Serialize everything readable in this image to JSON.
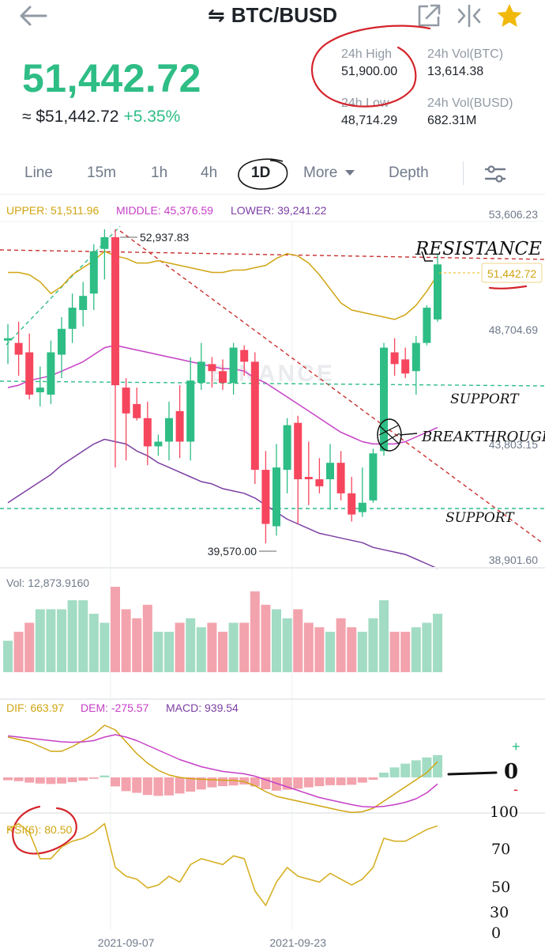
{
  "header": {
    "pair": "BTC/BUSD",
    "swap_icon": "⇋",
    "icons": [
      "back-arrow-icon",
      "share-icon",
      "compare-icon",
      "favorite-star-icon"
    ],
    "favorite_color": "#f0b90b"
  },
  "ticker": {
    "last_price": "51,442.72",
    "fiat_price": "≈ $51,442.72",
    "change": "+5.35%",
    "high_label": "24h High",
    "high_value": "51,900.00",
    "vol_btc_label": "24h Vol(BTC)",
    "vol_btc_value": "13,614.38",
    "low_label": "24h Low",
    "low_value": "48,714.29",
    "vol_busd_label": "24h Vol(BUSD)",
    "vol_busd_value": "682.31M"
  },
  "tabs": [
    {
      "label": "Line"
    },
    {
      "label": "15m"
    },
    {
      "label": "1h"
    },
    {
      "label": "4h"
    },
    {
      "label": "1D",
      "active": true
    },
    {
      "label": "More"
    },
    {
      "label": "Depth"
    }
  ],
  "settings_icon": "settings-sliders-icon",
  "colors": {
    "up": "#2ebd85",
    "down": "#f6465d",
    "upper": "#d0a512",
    "middle": "#c640c6",
    "lower": "#7c3fa3",
    "rsi": "#d7b025"
  },
  "chart_data": {
    "type": "candlestick",
    "boll_legend": {
      "upper": "UPPER: 51,511.96",
      "middle": "MIDDLE: 45,376.59",
      "lower": "LOWER: 39,241.22"
    },
    "price_axis": [
      "53,606.23",
      "48,704.69",
      "43,803.15",
      "38,901.60"
    ],
    "price_axis_values": [
      53606.23,
      48704.69,
      43803.15,
      38901.6
    ],
    "last_price_tag": "51,442.72",
    "high_marker": "52,937.83",
    "low_marker": "39,570.00",
    "watermark": "BINANCE",
    "candles": [
      {
        "o": 48200,
        "h": 48900,
        "l": 47200,
        "c": 48300
      },
      {
        "o": 48100,
        "h": 49000,
        "l": 46700,
        "c": 47600
      },
      {
        "o": 47700,
        "h": 48500,
        "l": 45700,
        "c": 45900
      },
      {
        "o": 46000,
        "h": 47100,
        "l": 45400,
        "c": 46200
      },
      {
        "o": 45900,
        "h": 48200,
        "l": 45500,
        "c": 47700
      },
      {
        "o": 47600,
        "h": 49200,
        "l": 46600,
        "c": 48700
      },
      {
        "o": 48700,
        "h": 50200,
        "l": 48100,
        "c": 49600
      },
      {
        "o": 49500,
        "h": 50700,
        "l": 48800,
        "c": 50100
      },
      {
        "o": 50200,
        "h": 52300,
        "l": 49500,
        "c": 52000
      },
      {
        "o": 52100,
        "h": 52937.83,
        "l": 50800,
        "c": 52600
      },
      {
        "o": 52600,
        "h": 52937.83,
        "l": 42800,
        "c": 46300
      },
      {
        "o": 46200,
        "h": 46600,
        "l": 43100,
        "c": 45100
      },
      {
        "o": 45500,
        "h": 46200,
        "l": 44800,
        "c": 44900
      },
      {
        "o": 44900,
        "h": 45600,
        "l": 42900,
        "c": 43700
      },
      {
        "o": 43700,
        "h": 44200,
        "l": 43300,
        "c": 43900
      },
      {
        "o": 43900,
        "h": 45600,
        "l": 43100,
        "c": 44900
      },
      {
        "o": 45200,
        "h": 46300,
        "l": 43200,
        "c": 43900
      },
      {
        "o": 43900,
        "h": 47500,
        "l": 43100,
        "c": 46500
      },
      {
        "o": 46400,
        "h": 48100,
        "l": 46100,
        "c": 47300
      },
      {
        "o": 47200,
        "h": 47500,
        "l": 46200,
        "c": 46900
      },
      {
        "o": 46900,
        "h": 47400,
        "l": 46100,
        "c": 46400
      },
      {
        "o": 46400,
        "h": 48100,
        "l": 45900,
        "c": 47900
      },
      {
        "o": 47800,
        "h": 48000,
        "l": 46700,
        "c": 47300
      },
      {
        "o": 47300,
        "h": 47700,
        "l": 42100,
        "c": 42700
      },
      {
        "o": 42700,
        "h": 43500,
        "l": 39570.0,
        "c": 40400
      },
      {
        "o": 40300,
        "h": 43800,
        "l": 39900,
        "c": 42800
      },
      {
        "o": 42700,
        "h": 44900,
        "l": 41700,
        "c": 44600
      },
      {
        "o": 44700,
        "h": 45000,
        "l": 40400,
        "c": 42300
      },
      {
        "o": 42400,
        "h": 43900,
        "l": 41200,
        "c": 42300
      },
      {
        "o": 42300,
        "h": 43200,
        "l": 41700,
        "c": 42000
      },
      {
        "o": 42300,
        "h": 43800,
        "l": 41000,
        "c": 43000
      },
      {
        "o": 43000,
        "h": 43500,
        "l": 41400,
        "c": 41700
      },
      {
        "o": 41700,
        "h": 42400,
        "l": 40500,
        "c": 40800
      },
      {
        "o": 40900,
        "h": 42800,
        "l": 40700,
        "c": 41300
      },
      {
        "o": 41400,
        "h": 43600,
        "l": 41300,
        "c": 43400
      },
      {
        "o": 43500,
        "h": 48100,
        "l": 43300,
        "c": 47900
      },
      {
        "o": 47700,
        "h": 48300,
        "l": 46700,
        "c": 47200
      },
      {
        "o": 47400,
        "h": 47900,
        "l": 46600,
        "c": 46800
      },
      {
        "o": 46900,
        "h": 48400,
        "l": 45900,
        "c": 48100
      },
      {
        "o": 48100,
        "h": 49700,
        "l": 48000,
        "c": 49600
      },
      {
        "o": 49100,
        "h": 51900.0,
        "l": 49000,
        "c": 51442.72
      }
    ],
    "boll_upper": [
      51100,
      51100,
      51000,
      50700,
      50200,
      50500,
      51000,
      51300,
      51600,
      52000,
      51800,
      51700,
      51500,
      51500,
      51600,
      51500,
      51400,
      51300,
      51200,
      51100,
      51100,
      51200,
      51200,
      51300,
      51400,
      51700,
      51900,
      51800,
      51500,
      51000,
      50400,
      49800,
      49500,
      49400,
      49300,
      49200,
      49100,
      49300,
      49700,
      50300,
      51000
    ],
    "boll_middle": [
      46200,
      46300,
      46500,
      46600,
      46700,
      46900,
      47100,
      47300,
      47600,
      47900,
      48000,
      47900,
      47800,
      47700,
      47600,
      47500,
      47400,
      47300,
      47200,
      47100,
      47000,
      47000,
      46900,
      46600,
      46400,
      46100,
      45800,
      45500,
      45200,
      44900,
      44600,
      44300,
      44100,
      43900,
      43800,
      43800,
      43800,
      43900,
      44100,
      44300,
      44500
    ],
    "boll_lower": [
      41300,
      41600,
      41900,
      42200,
      42500,
      42900,
      43200,
      43500,
      43800,
      44000,
      43900,
      43800,
      43500,
      43300,
      43000,
      42800,
      42600,
      42400,
      42200,
      42100,
      41900,
      41800,
      41700,
      41500,
      41200,
      40900,
      40600,
      40400,
      40200,
      40000,
      39900,
      39800,
      39700,
      39600,
      39400,
      39300,
      39200,
      39100,
      38900,
      38700,
      38500
    ],
    "volume": {
      "label": "Vol: 12,873.9160",
      "values": [
        7,
        9,
        11,
        14,
        14,
        14,
        16,
        16,
        13,
        11,
        19,
        14,
        12,
        15,
        9,
        9,
        11,
        12,
        10,
        11,
        9,
        11,
        11,
        18,
        15,
        14,
        12,
        14,
        11,
        10,
        9,
        12,
        10,
        9,
        12,
        16,
        9,
        9,
        10,
        11,
        13
      ]
    },
    "macd": {
      "dif_label": "DIF: 663.97",
      "dem_label": "DEM: -275.57",
      "macd_label": "MACD: 939.54",
      "dif": [
        1700,
        1600,
        1500,
        1300,
        1100,
        1100,
        1300,
        1550,
        1800,
        2200,
        2000,
        1500,
        1000,
        600,
        300,
        100,
        0,
        -50,
        -80,
        -100,
        -120,
        -130,
        -180,
        -350,
        -600,
        -800,
        -900,
        -1000,
        -1100,
        -1200,
        -1300,
        -1400,
        -1480,
        -1450,
        -1300,
        -1000,
        -700,
        -400,
        -100,
        200,
        663.97
      ],
      "dem": [
        1750,
        1700,
        1650,
        1600,
        1550,
        1500,
        1480,
        1500,
        1550,
        1700,
        1800,
        1700,
        1550,
        1350,
        1150,
        950,
        750,
        600,
        450,
        350,
        250,
        200,
        150,
        50,
        -100,
        -250,
        -400,
        -550,
        -700,
        -850,
        -950,
        -1050,
        -1150,
        -1230,
        -1250,
        -1220,
        -1150,
        -1050,
        -900,
        -650,
        -275.57
      ],
      "hist": [
        -120,
        -160,
        -220,
        -260,
        -280,
        -260,
        -200,
        -140,
        -60,
        80,
        -380,
        -580,
        -650,
        -740,
        -780,
        -760,
        -680,
        -600,
        -510,
        -420,
        -370,
        -340,
        -300,
        -380,
        -500,
        -560,
        -520,
        -480,
        -420,
        -370,
        -330,
        -330,
        -310,
        -220,
        -100,
        200,
        420,
        580,
        720,
        840,
        939.54
      ]
    },
    "rsi": {
      "label": "RSI(6): 80.50",
      "values": [
        78,
        82,
        76,
        58,
        58,
        66,
        70,
        72,
        76,
        82,
        52,
        46,
        44,
        38,
        40,
        46,
        42,
        54,
        58,
        56,
        54,
        60,
        58,
        36,
        26,
        42,
        52,
        46,
        44,
        42,
        48,
        44,
        40,
        44,
        52,
        72,
        70,
        70,
        74,
        78,
        80.5
      ]
    },
    "x_labels": [
      {
        "index": 11,
        "label": "2021-09-07"
      },
      {
        "index": 27,
        "label": "2021-09-23"
      }
    ]
  },
  "annotations": {
    "resistance": "RESISTANCE",
    "support_1": "SUPPORT",
    "breakthrough": "BREAKTHROUGH",
    "support_2": "SUPPORT",
    "macd_note": "0",
    "rsi_marks": [
      "100",
      "70",
      "50",
      "30",
      "0"
    ]
  }
}
